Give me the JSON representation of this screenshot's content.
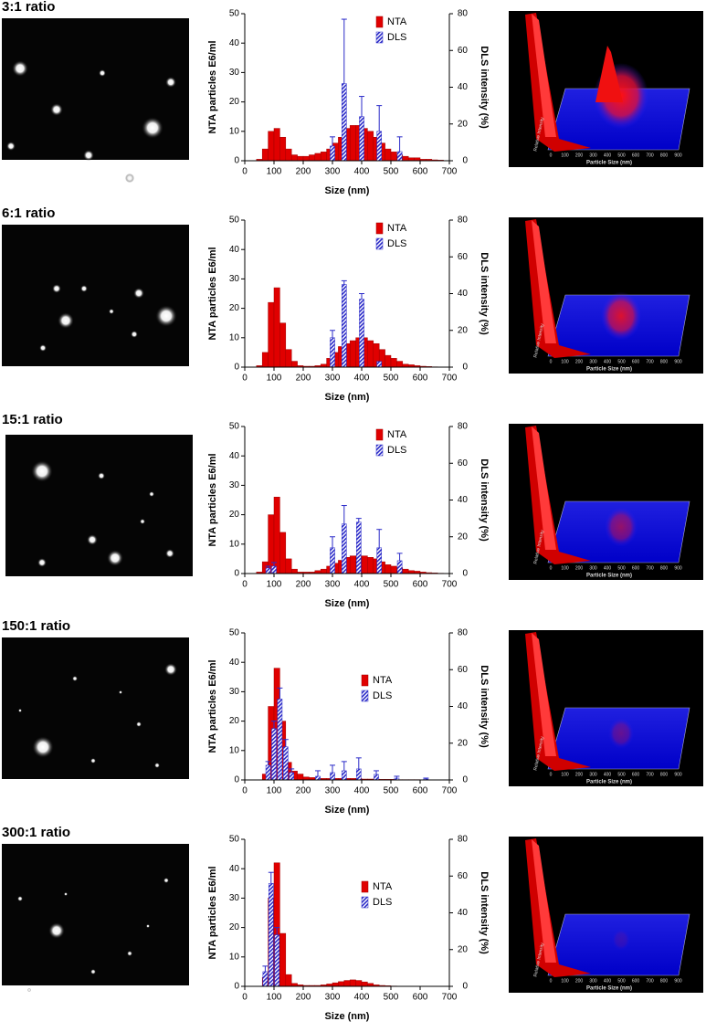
{
  "chart_data": [
    {
      "type": "bar",
      "title": "3:1 ratio",
      "xlabel": "Size (nm)",
      "ylabel": "NTA particles E6/ml",
      "y2label": "DLS intensity (%)",
      "xlim": [
        0,
        700
      ],
      "xticks": [
        0,
        100,
        200,
        300,
        400,
        500,
        600,
        700
      ],
      "ylim": [
        0,
        50
      ],
      "yticks": [
        0,
        10,
        20,
        30,
        40,
        50
      ],
      "y2lim": [
        0,
        80
      ],
      "y2ticks": [
        0,
        20,
        40,
        60,
        80
      ],
      "legend": "upper right",
      "series": [
        {
          "name": "NTA",
          "color": "#e00000",
          "x": [
            10,
            30,
            50,
            70,
            90,
            110,
            130,
            150,
            170,
            190,
            210,
            230,
            250,
            270,
            290,
            310,
            330,
            350,
            370,
            390,
            410,
            430,
            450,
            470,
            490,
            510,
            530,
            550,
            570,
            590,
            610,
            630,
            650,
            670,
            690
          ],
          "values": [
            0,
            0,
            0.5,
            4,
            10,
            11,
            8,
            4,
            2,
            1.5,
            1.5,
            2,
            2.5,
            3,
            4,
            6,
            8,
            11,
            12,
            12,
            11,
            10,
            8,
            6,
            4,
            3,
            2,
            1.5,
            1,
            1,
            0.5,
            0.5,
            0.3,
            0.2,
            0
          ]
        },
        {
          "name": "DLS",
          "color": "#2a2ac8",
          "axis": "y2",
          "x": [
            300,
            340,
            400,
            460,
            530
          ],
          "values": [
            8,
            42,
            24,
            16,
            5
          ],
          "errors": [
            5,
            35,
            11,
            14,
            8
          ]
        }
      ]
    },
    {
      "type": "bar",
      "title": "6:1 ratio",
      "xlabel": "Size (nm)",
      "ylabel": "NTA particles E6/ml",
      "y2label": "DLS intensity (%)",
      "xlim": [
        0,
        700
      ],
      "xticks": [
        0,
        100,
        200,
        300,
        400,
        500,
        600,
        700
      ],
      "ylim": [
        0,
        50
      ],
      "yticks": [
        0,
        10,
        20,
        30,
        40,
        50
      ],
      "y2lim": [
        0,
        80
      ],
      "y2ticks": [
        0,
        20,
        40,
        60,
        80
      ],
      "legend": "upper right",
      "series": [
        {
          "name": "NTA",
          "color": "#e00000",
          "x": [
            10,
            30,
            50,
            70,
            90,
            110,
            130,
            150,
            170,
            190,
            210,
            230,
            250,
            270,
            290,
            310,
            330,
            350,
            370,
            390,
            410,
            430,
            450,
            470,
            490,
            510,
            530,
            550,
            570,
            590,
            610,
            630,
            650,
            670,
            690
          ],
          "values": [
            0,
            0,
            0.5,
            5,
            22,
            27,
            15,
            6,
            2,
            0.5,
            0.3,
            0.3,
            0.5,
            1,
            3,
            5,
            7,
            8,
            9,
            10,
            10,
            9,
            8,
            6,
            4,
            3,
            2,
            1,
            0.8,
            0.5,
            0.3,
            0.2,
            0.1,
            0,
            0
          ]
        },
        {
          "name": "DLS",
          "color": "#2a2ac8",
          "axis": "y2",
          "x": [
            300,
            340,
            400,
            460
          ],
          "values": [
            16,
            45,
            37,
            3
          ],
          "errors": [
            4,
            2,
            3,
            0
          ]
        }
      ]
    },
    {
      "type": "bar",
      "title": "15:1 ratio",
      "xlabel": "Size (nm)",
      "ylabel": "NTA particles E6/ml",
      "y2label": "DLS intensity (%)",
      "xlim": [
        0,
        700
      ],
      "xticks": [
        0,
        100,
        200,
        300,
        400,
        500,
        600,
        700
      ],
      "ylim": [
        0,
        50
      ],
      "yticks": [
        0,
        10,
        20,
        30,
        40,
        50
      ],
      "y2lim": [
        0,
        80
      ],
      "y2ticks": [
        0,
        20,
        40,
        60,
        80
      ],
      "legend": "upper right",
      "series": [
        {
          "name": "NTA",
          "color": "#e00000",
          "x": [
            10,
            30,
            50,
            70,
            90,
            110,
            130,
            150,
            170,
            190,
            210,
            230,
            250,
            270,
            290,
            310,
            330,
            350,
            370,
            390,
            410,
            430,
            450,
            470,
            490,
            510,
            530,
            550,
            570,
            590,
            610,
            630,
            650,
            670,
            690
          ],
          "values": [
            0,
            0,
            0.5,
            4,
            20,
            26,
            14,
            5,
            1.5,
            0.5,
            0.5,
            0.5,
            1,
            1.5,
            2.5,
            3.5,
            4.5,
            5.5,
            6,
            6,
            6,
            5.5,
            5,
            4,
            3,
            2.5,
            2,
            1.5,
            1,
            0.8,
            0.5,
            0.3,
            0.2,
            0.1,
            0
          ]
        },
        {
          "name": "DLS",
          "color": "#2a2ac8",
          "axis": "y2",
          "x": [
            80,
            100,
            300,
            340,
            390,
            460,
            530
          ],
          "values": [
            3,
            4,
            14,
            27,
            28,
            14,
            7
          ],
          "errors": [
            1,
            2,
            6,
            10,
            2,
            10,
            4
          ]
        }
      ]
    },
    {
      "type": "bar",
      "title": "150:1 ratio",
      "xlabel": "Size (nm)",
      "ylabel": "NTA particles E6/ml",
      "y2label": "DLS intensity (%)",
      "xlim": [
        0,
        700
      ],
      "xticks": [
        0,
        100,
        200,
        300,
        400,
        500,
        600,
        700
      ],
      "ylim": [
        0,
        50
      ],
      "yticks": [
        0,
        10,
        20,
        30,
        40,
        50
      ],
      "y2lim": [
        0,
        80
      ],
      "y2ticks": [
        0,
        20,
        40,
        60,
        80
      ],
      "legend": "center right",
      "series": [
        {
          "name": "NTA",
          "color": "#e00000",
          "x": [
            10,
            30,
            50,
            70,
            90,
            110,
            130,
            150,
            170,
            190,
            210,
            230,
            250,
            270,
            290,
            310,
            330,
            350,
            370,
            390,
            410,
            430,
            450,
            470,
            490,
            510,
            530,
            550,
            570,
            590,
            610,
            630,
            650,
            670,
            690
          ],
          "values": [
            0,
            0,
            0,
            2,
            25,
            38,
            20,
            6,
            3,
            2,
            1,
            0.8,
            0.5,
            0.5,
            0.5,
            0.5,
            0.5,
            0.5,
            0.5,
            0.5,
            0.3,
            0.3,
            0.3,
            0.2,
            0.2,
            0.2,
            0.1,
            0.1,
            0.1,
            0.1,
            0,
            0,
            0,
            0,
            0
          ]
        },
        {
          "name": "DLS",
          "color": "#2a2ac8",
          "axis": "y2",
          "x": [
            80,
            100,
            120,
            140,
            160,
            250,
            300,
            340,
            390,
            450,
            520,
            620
          ],
          "values": [
            8,
            28,
            44,
            18,
            4,
            2,
            4,
            5,
            6,
            3,
            1,
            0.5
          ],
          "errors": [
            2,
            4,
            6,
            4,
            2,
            3,
            4,
            5,
            6,
            2,
            1,
            0.5
          ]
        }
      ]
    },
    {
      "type": "bar",
      "title": "300:1 ratio",
      "xlabel": "Size (nm)",
      "ylabel": "NTA particles E6/ml",
      "y2label": "DLS intensity (%)",
      "xlim": [
        0,
        700
      ],
      "xticks": [
        0,
        100,
        200,
        300,
        400,
        500,
        600,
        700
      ],
      "ylim": [
        0,
        50
      ],
      "yticks": [
        0,
        10,
        20,
        30,
        40,
        50
      ],
      "y2lim": [
        0,
        80
      ],
      "y2ticks": [
        0,
        20,
        40,
        60,
        80
      ],
      "legend": "center right",
      "series": [
        {
          "name": "NTA",
          "color": "#e00000",
          "x": [
            10,
            30,
            50,
            70,
            90,
            110,
            130,
            150,
            170,
            190,
            210,
            230,
            250,
            270,
            290,
            310,
            330,
            350,
            370,
            390,
            410,
            430,
            450,
            470,
            490,
            510,
            530,
            550,
            570,
            590,
            610,
            630,
            650,
            670,
            690
          ],
          "values": [
            0,
            0,
            0,
            3,
            30,
            42,
            18,
            4,
            1,
            0.5,
            0.3,
            0.3,
            0.3,
            0.5,
            0.8,
            1.2,
            1.6,
            2,
            2.2,
            2,
            1.5,
            1,
            0.5,
            0.3,
            0.2,
            0.1,
            0,
            0,
            0,
            0,
            0,
            0,
            0,
            0,
            0
          ]
        },
        {
          "name": "DLS",
          "color": "#2a2ac8",
          "axis": "y2",
          "x": [
            70,
            90,
            110
          ],
          "values": [
            8,
            56,
            28
          ],
          "errors": [
            3,
            6,
            4
          ]
        }
      ]
    },
    {
      "type": "surface",
      "xlabel": "Particle Size (nm)",
      "ylabel": "Relative Intensity",
      "xticks": [
        0,
        100,
        200,
        300,
        400,
        500,
        600,
        700,
        800,
        900
      ]
    },
    {
      "type": "surface",
      "xlabel": "Particle Size (nm)",
      "ylabel": "Relative Intensity",
      "xticks": [
        0,
        100,
        200,
        300,
        400,
        500,
        600,
        700,
        800,
        900
      ]
    },
    {
      "type": "surface",
      "xlabel": "Particle Size (nm)",
      "ylabel": "Relative Intensity",
      "xticks": [
        0,
        100,
        200,
        300,
        400,
        500,
        600,
        700,
        800,
        900
      ]
    },
    {
      "type": "surface",
      "xlabel": "Particle Size (nm)",
      "ylabel": "Relative Intensity",
      "xticks": [
        0,
        100,
        200,
        300,
        400,
        500,
        600,
        700,
        800,
        900
      ]
    },
    {
      "type": "surface",
      "xlabel": "Particle Size (nm)",
      "ylabel": "Relative Intensity",
      "xticks": [
        0,
        100,
        200,
        300,
        400,
        500,
        600,
        700,
        800,
        900
      ]
    }
  ]
}
